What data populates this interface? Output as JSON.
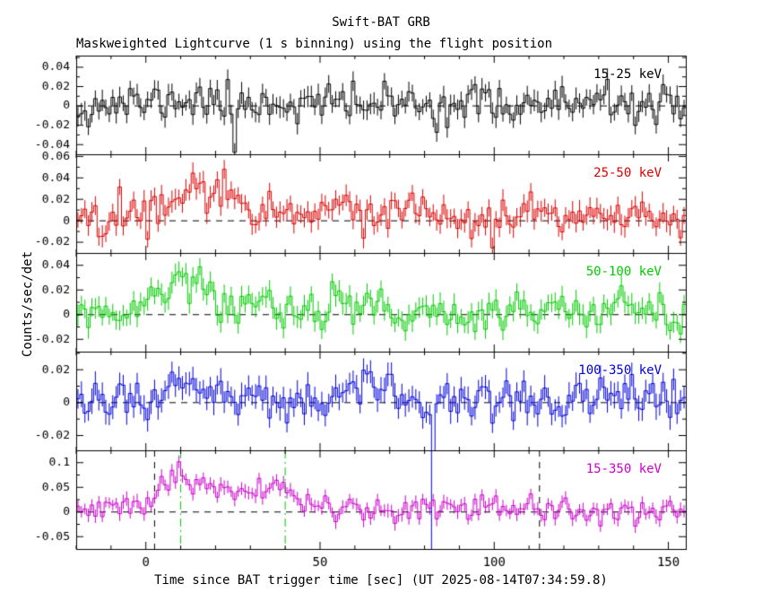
{
  "title": "Swift-BAT GRB",
  "subtitle": "Maskweighted Lightcurve (1 s binning) using the flight position",
  "xlabel": "Time since BAT trigger time [sec] (UT 2025-08-14T07:34:59.8)",
  "ylabel": "Counts/sec/det",
  "chart_data": {
    "type": "line",
    "title": "Swift-BAT GRB",
    "subtitle": "Maskweighted Lightcurve (1 s binning) using the flight position",
    "xlabel": "Time since BAT trigger time [sec] (UT 2025-08-14T07:34:59.8)",
    "ylabel": "Counts/sec/det",
    "grid": false,
    "x_range": [
      -20,
      155
    ],
    "x_major_ticks": [
      0,
      50,
      100,
      150
    ],
    "x_minor_step": 10,
    "bin_seconds": 1,
    "zero_line": {
      "color": "#000000",
      "style": "dashed"
    },
    "panels": [
      {
        "label": "15-25 keV",
        "color": "#000000",
        "ylim": [
          -0.05,
          0.052
        ],
        "yticks": [
          -0.04,
          -0.02,
          0,
          0.02,
          0.04
        ],
        "noise_sigma": 0.01,
        "seed": 11,
        "profile": [
          [
            -20,
            0
          ],
          [
            0,
            0.003
          ],
          [
            10,
            0.006
          ],
          [
            20,
            0.005
          ],
          [
            30,
            0.004
          ],
          [
            45,
            0.002
          ],
          [
            60,
            0.003
          ],
          [
            80,
            0.001
          ],
          [
            100,
            0.002
          ],
          [
            120,
            0.001
          ],
          [
            155,
            0
          ]
        ],
        "spikes": [
          {
            "t": 25,
            "v": -0.048
          }
        ]
      },
      {
        "label": "25-50 keV",
        "color": "#dd0000",
        "ylim": [
          -0.03,
          0.062
        ],
        "yticks": [
          -0.02,
          0,
          0.02,
          0.04,
          0.06
        ],
        "noise_sigma": 0.009,
        "seed": 22,
        "profile": [
          [
            -20,
            0
          ],
          [
            -5,
            0.004
          ],
          [
            0,
            0.01
          ],
          [
            6,
            0.02
          ],
          [
            12,
            0.026
          ],
          [
            18,
            0.028
          ],
          [
            24,
            0.032
          ],
          [
            28,
            0.018
          ],
          [
            35,
            0.012
          ],
          [
            45,
            0.01
          ],
          [
            55,
            0.012
          ],
          [
            65,
            0.006
          ],
          [
            75,
            0.004
          ],
          [
            90,
            0.002
          ],
          [
            100,
            0.005
          ],
          [
            112,
            0.007
          ],
          [
            125,
            0.002
          ],
          [
            140,
            0.004
          ],
          [
            155,
            0
          ]
        ],
        "spikes": []
      },
      {
        "label": "50-100 keV",
        "color": "#00cc00",
        "ylim": [
          -0.03,
          0.05
        ],
        "yticks": [
          -0.02,
          0,
          0.02,
          0.04
        ],
        "noise_sigma": 0.008,
        "seed": 33,
        "profile": [
          [
            -20,
            0
          ],
          [
            -3,
            0.002
          ],
          [
            2,
            0.01
          ],
          [
            6,
            0.024
          ],
          [
            9,
            0.031
          ],
          [
            12,
            0.028
          ],
          [
            16,
            0.018
          ],
          [
            22,
            0.012
          ],
          [
            30,
            0.008
          ],
          [
            40,
            0.004
          ],
          [
            50,
            0.004
          ],
          [
            58,
            0.008
          ],
          [
            68,
            0.003
          ],
          [
            80,
            0.002
          ],
          [
            100,
            0.003
          ],
          [
            120,
            0.002
          ],
          [
            155,
            0
          ]
        ],
        "spikes": []
      },
      {
        "label": "100-350 keV",
        "color": "#0000dd",
        "ylim": [
          -0.029,
          0.031
        ],
        "yticks": [
          -0.02,
          0,
          0.02
        ],
        "noise_sigma": 0.007,
        "seed": 44,
        "profile": [
          [
            -20,
            0
          ],
          [
            0,
            0.002
          ],
          [
            6,
            0.008
          ],
          [
            11,
            0.011
          ],
          [
            16,
            0.006
          ],
          [
            25,
            0.002
          ],
          [
            40,
            0.001
          ],
          [
            55,
            0.005
          ],
          [
            63,
            0.008
          ],
          [
            70,
            0.004
          ],
          [
            80,
            0
          ],
          [
            100,
            0.002
          ],
          [
            120,
            0
          ],
          [
            155,
            0
          ]
        ],
        "spikes": [
          {
            "t": 82,
            "v": -0.08
          }
        ]
      },
      {
        "label": "15-350 keV",
        "color": "#cc00cc",
        "ylim": [
          -0.075,
          0.125
        ],
        "yticks": [
          -0.05,
          0,
          0.05,
          0.1
        ],
        "noise_sigma": 0.013,
        "seed": 55,
        "profile": [
          [
            -20,
            0
          ],
          [
            0,
            0.005
          ],
          [
            3,
            0.04
          ],
          [
            8,
            0.07
          ],
          [
            11,
            0.08
          ],
          [
            15,
            0.06
          ],
          [
            20,
            0.05
          ],
          [
            28,
            0.04
          ],
          [
            35,
            0.035
          ],
          [
            40,
            0.04
          ],
          [
            45,
            0.025
          ],
          [
            50,
            0.012
          ],
          [
            60,
            0.012
          ],
          [
            70,
            0.006
          ],
          [
            85,
            0.003
          ],
          [
            95,
            0.008
          ],
          [
            110,
            0.008
          ],
          [
            125,
            0.003
          ],
          [
            155,
            0.002
          ]
        ],
        "spikes": []
      }
    ],
    "bottom_annotations": [
      {
        "x": 2.5,
        "color": "#000000",
        "style": "dashed"
      },
      {
        "x": 10,
        "color": "#00cc00",
        "style": "dashdot"
      },
      {
        "x": 40,
        "color": "#00cc00",
        "style": "dashdot"
      },
      {
        "x": 82,
        "color": "#0000dd",
        "style": "solid"
      },
      {
        "x": 113,
        "color": "#000000",
        "style": "dashed"
      }
    ]
  }
}
